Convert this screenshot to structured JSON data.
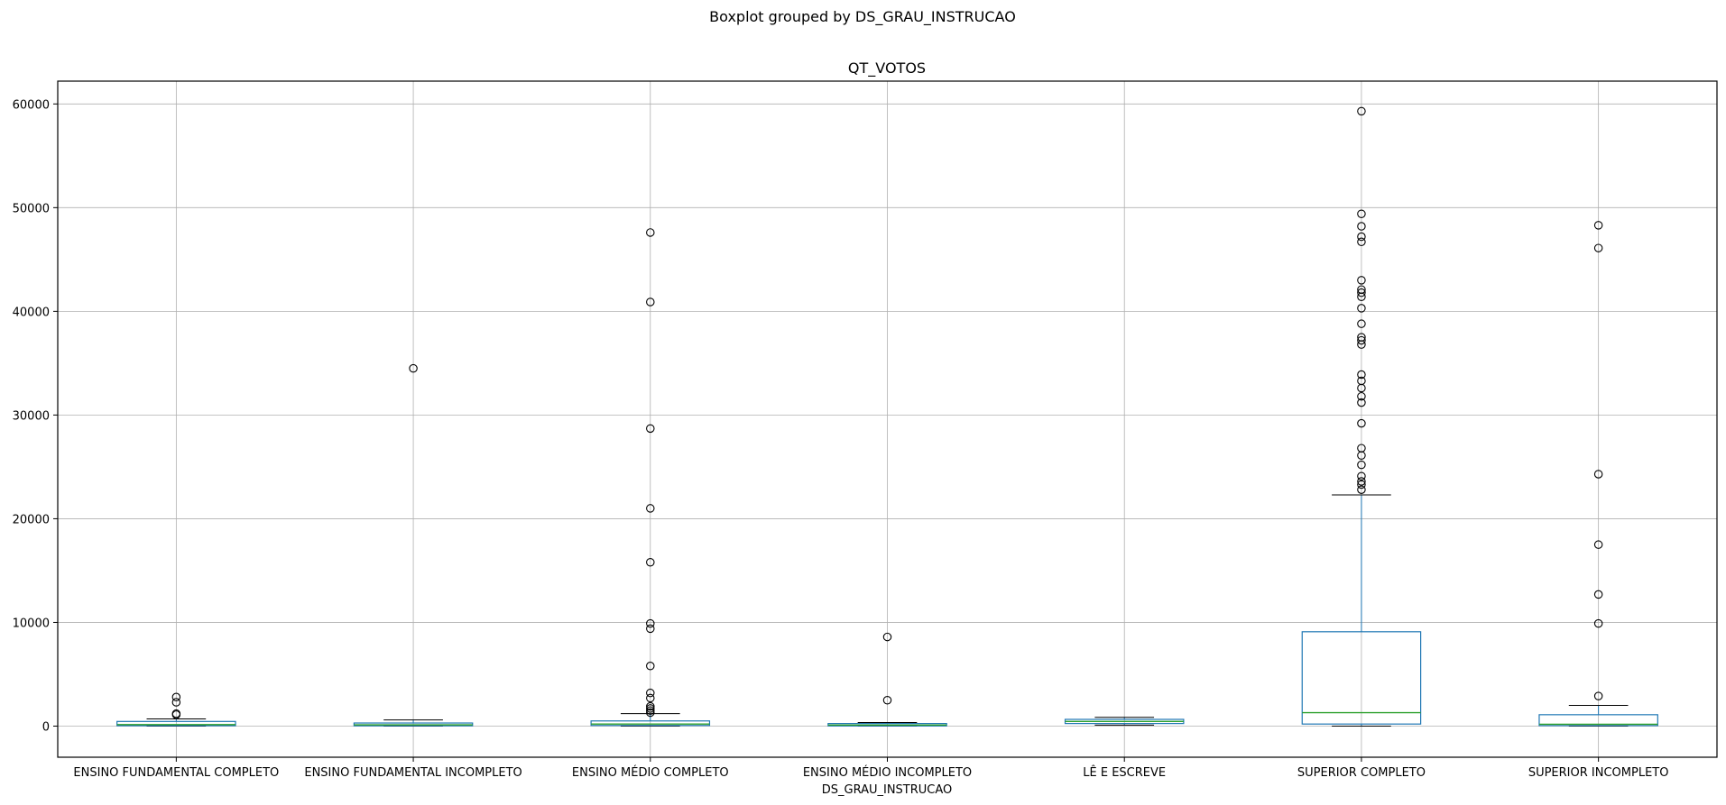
{
  "chart_data": {
    "type": "boxplot",
    "suptitle": "Boxplot grouped by DS_GRAU_INSTRUCAO",
    "title": "QT_VOTOS",
    "xlabel": "DS_GRAU_INSTRUCAO",
    "ylabel": "",
    "ylim": [
      -3000,
      62200
    ],
    "yticks": [
      0,
      10000,
      20000,
      30000,
      40000,
      50000,
      60000
    ],
    "grid": true,
    "colors": {
      "box": "#1f77b4",
      "median": "#2ca02c",
      "whisker": "#1f77b4",
      "cap": "#000000",
      "flier": "#000000",
      "grid": "#b0b0b0"
    },
    "groups": [
      {
        "label": "ENSINO FUNDAMENTAL COMPLETO",
        "whislo": 0,
        "q1": 40,
        "med": 150,
        "q3": 450,
        "whishi": 700,
        "fliers": [
          1100,
          1200,
          2300,
          2800
        ]
      },
      {
        "label": "ENSINO FUNDAMENTAL INCOMPLETO",
        "whislo": 0,
        "q1": 30,
        "med": 120,
        "q3": 300,
        "whishi": 600,
        "fliers": [
          34500
        ]
      },
      {
        "label": "ENSINO MÉDIO COMPLETO",
        "whislo": 0,
        "q1": 60,
        "med": 200,
        "q3": 500,
        "whishi": 1200,
        "fliers": [
          1300,
          1500,
          1700,
          1900,
          2700,
          3200,
          5800,
          9400,
          9900,
          15800,
          21000,
          28700,
          40900,
          47600
        ]
      },
      {
        "label": "ENSINO MÉDIO INCOMPLETO",
        "whislo": 0,
        "q1": 20,
        "med": 100,
        "q3": 250,
        "whishi": 350,
        "fliers": [
          2500,
          8600
        ]
      },
      {
        "label": "LÊ E ESCREVE",
        "whislo": 100,
        "q1": 250,
        "med": 450,
        "q3": 650,
        "whishi": 850,
        "fliers": []
      },
      {
        "label": "SUPERIOR COMPLETO",
        "whislo": 0,
        "q1": 200,
        "med": 1300,
        "q3": 9100,
        "whishi": 22300,
        "fliers": [
          22800,
          23300,
          23600,
          24100,
          25200,
          26100,
          26800,
          29200,
          31200,
          31800,
          32600,
          33300,
          33900,
          36800,
          37200,
          37500,
          38800,
          40300,
          41400,
          41800,
          42100,
          43000,
          46700,
          47200,
          48200,
          49400,
          59300
        ]
      },
      {
        "label": "SUPERIOR INCOMPLETO",
        "whislo": 0,
        "q1": 50,
        "med": 180,
        "q3": 1100,
        "whishi": 2000,
        "fliers": [
          2900,
          9900,
          12700,
          17500,
          24300,
          46100,
          48300
        ]
      }
    ]
  }
}
